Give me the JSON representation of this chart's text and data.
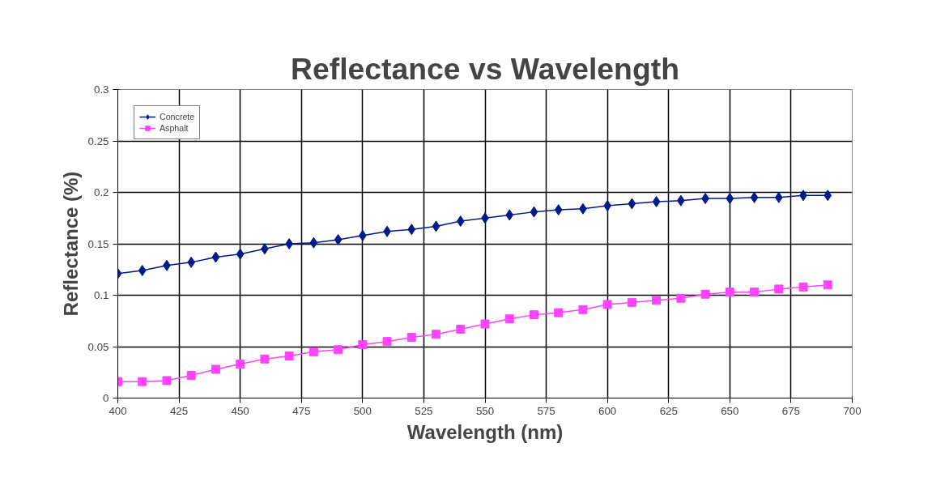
{
  "chart_data": {
    "type": "line",
    "title": "Reflectance vs Wavelength",
    "xlabel": "Wavelength (nm)",
    "ylabel": "Reflectance (%)",
    "x": [
      400,
      410,
      420,
      430,
      440,
      450,
      460,
      470,
      480,
      490,
      500,
      510,
      520,
      530,
      540,
      550,
      560,
      570,
      580,
      590,
      600,
      610,
      620,
      630,
      640,
      650,
      660,
      670,
      680,
      690
    ],
    "series": [
      {
        "name": "Concrete",
        "color": "#001a8c",
        "marker": "diamond",
        "values": [
          0.121,
          0.124,
          0.129,
          0.132,
          0.137,
          0.14,
          0.145,
          0.15,
          0.151,
          0.154,
          0.158,
          0.162,
          0.164,
          0.167,
          0.172,
          0.175,
          0.178,
          0.181,
          0.183,
          0.184,
          0.187,
          0.189,
          0.191,
          0.192,
          0.194,
          0.194,
          0.195,
          0.195,
          0.197,
          0.197
        ]
      },
      {
        "name": "Asphalt",
        "color": "#ff44ff",
        "marker": "square",
        "values": [
          0.016,
          0.016,
          0.017,
          0.022,
          0.028,
          0.033,
          0.038,
          0.041,
          0.045,
          0.047,
          0.052,
          0.055,
          0.059,
          0.062,
          0.067,
          0.072,
          0.077,
          0.081,
          0.083,
          0.086,
          0.091,
          0.093,
          0.095,
          0.097,
          0.101,
          0.103,
          0.103,
          0.106,
          0.108,
          0.11
        ]
      }
    ],
    "xlim": [
      400,
      700
    ],
    "xticks": [
      400,
      425,
      450,
      475,
      500,
      525,
      550,
      575,
      600,
      625,
      650,
      675,
      700
    ],
    "ylim": [
      0,
      0.3
    ],
    "yticks": [
      0,
      0.05,
      0.1,
      0.15,
      0.2,
      0.25,
      0.3
    ],
    "grid": true,
    "legend": "top left"
  }
}
